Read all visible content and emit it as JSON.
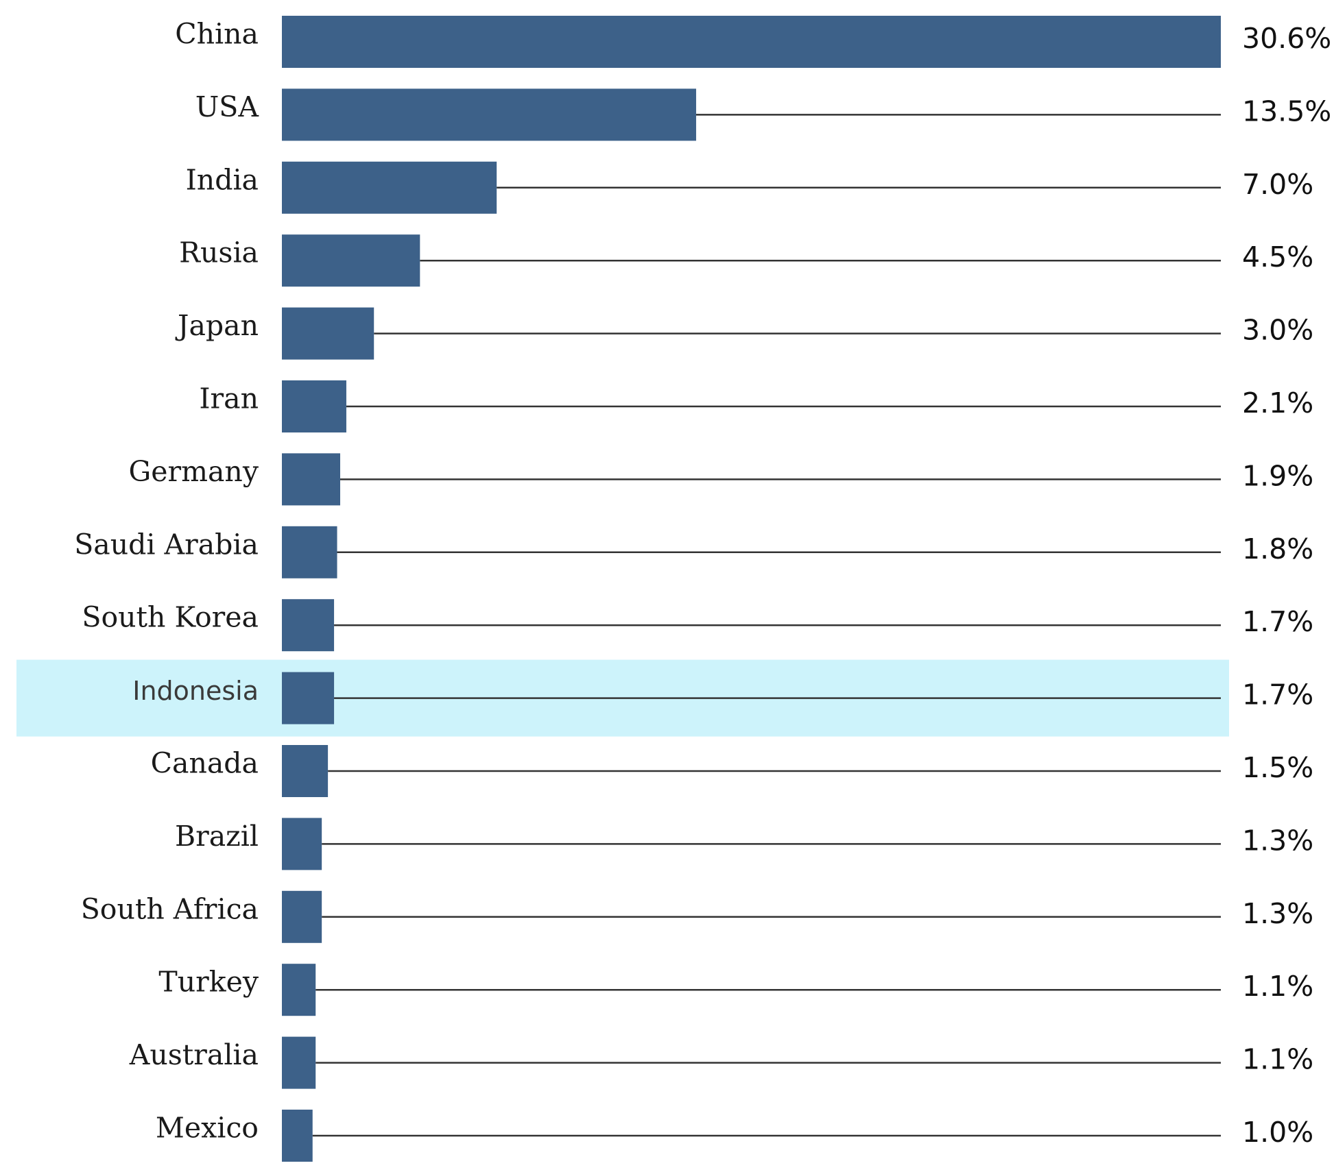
{
  "chart_data": {
    "type": "bar",
    "orientation": "horizontal",
    "categories": [
      "China",
      "USA",
      "India",
      "Rusia",
      "Japan",
      "Iran",
      "Germany",
      "Saudi Arabia",
      "South Korea",
      "Indonesia",
      "Canada",
      "Brazil",
      "South Africa",
      "Turkey",
      "Australia",
      "Mexico"
    ],
    "values": [
      30.6,
      13.5,
      7.0,
      4.5,
      3.0,
      2.1,
      1.9,
      1.8,
      1.7,
      1.7,
      1.5,
      1.3,
      1.3,
      1.1,
      1.1,
      1.0
    ],
    "value_labels": [
      "30.6%",
      "13.5%",
      "7.0%",
      "4.5%",
      "3.0%",
      "2.1%",
      "1.9%",
      "1.8%",
      "1.7%",
      "1.7%",
      "1.5%",
      "1.3%",
      "1.3%",
      "1.1%",
      "1.1%",
      "1.0%"
    ],
    "highlighted_category": "Indonesia",
    "xlim": [
      0,
      30.6
    ],
    "grid": false,
    "leader_lines": true
  },
  "colors": {
    "bar": "#3d6189",
    "highlight_band": "#cdf3fb",
    "leader_line": "#333333"
  }
}
